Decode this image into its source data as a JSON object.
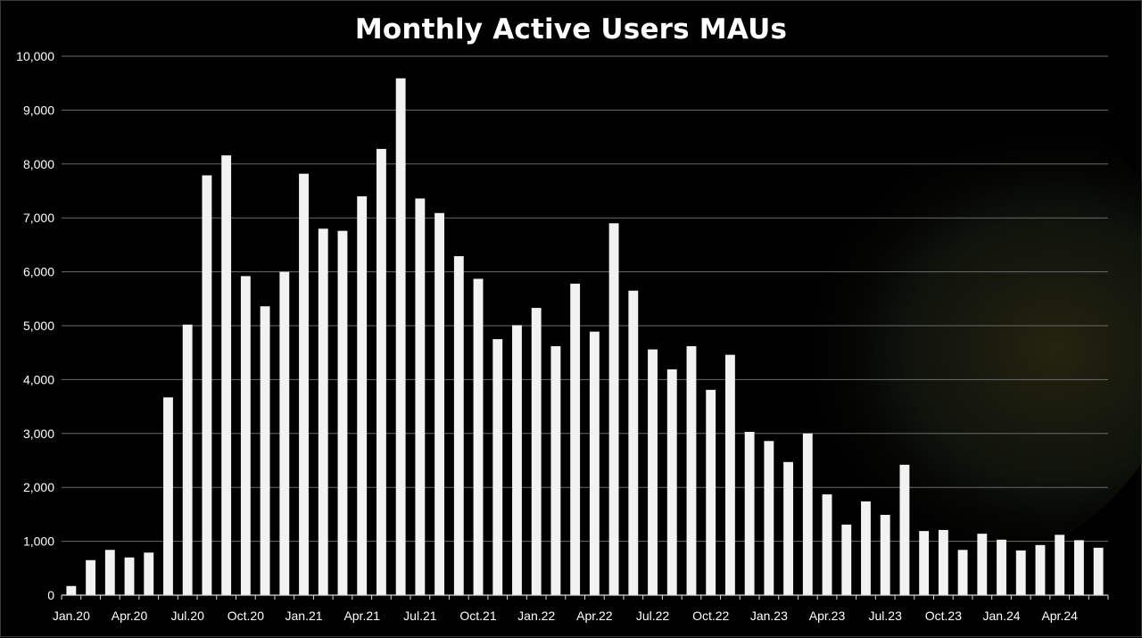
{
  "chart_data": {
    "type": "bar",
    "title": "Monthly Active Users MAUs",
    "xlabel": "",
    "ylabel": "",
    "ylim": [
      0,
      10000
    ],
    "yticks": [
      0,
      1000,
      2000,
      3000,
      4000,
      5000,
      6000,
      7000,
      8000,
      9000,
      10000
    ],
    "ytick_labels": [
      "0",
      "1,000",
      "2,000",
      "3,000",
      "4,000",
      "5,000",
      "6,000",
      "7,000",
      "8,000",
      "9,000",
      "10,000"
    ],
    "grid": true,
    "legend": "none",
    "categories": [
      "Jan.20",
      "Feb.20",
      "Mar.20",
      "Apr.20",
      "May.20",
      "Jun.20",
      "Jul.20",
      "Aug.20",
      "Sep.20",
      "Oct.20",
      "Nov.20",
      "Dec.20",
      "Jan.21",
      "Feb.21",
      "Mar.21",
      "Apr.21",
      "May.21",
      "Jun.21",
      "Jul.21",
      "Aug.21",
      "Sep.21",
      "Oct.21",
      "Nov.21",
      "Dec.21",
      "Jan.22",
      "Feb.22",
      "Mar.22",
      "Apr.22",
      "May.22",
      "Jun.22",
      "Jul.22",
      "Aug.22",
      "Sep.22",
      "Oct.22",
      "Nov.22",
      "Dec.22",
      "Jan.23",
      "Feb.23",
      "Mar.23",
      "Apr.23",
      "May.23",
      "Jun.23",
      "Jul.23",
      "Aug.23",
      "Sep.23",
      "Oct.23",
      "Nov.23",
      "Dec.23",
      "Jan.24",
      "Feb.24",
      "Mar.24",
      "Apr.24",
      "May.24",
      "Jun.24"
    ],
    "xtick_labels": [
      "Jan.20",
      "Apr.20",
      "Jul.20",
      "Oct.20",
      "Jan.21",
      "Apr.21",
      "Jul.21",
      "Oct.21",
      "Jan.22",
      "Apr.22",
      "Jul.22",
      "Oct.22",
      "Jan.23",
      "Apr.23",
      "Jul.23",
      "Oct.23",
      "Jan.24",
      "Apr.24"
    ],
    "values": [
      170,
      650,
      840,
      700,
      790,
      3670,
      5020,
      7790,
      8160,
      5920,
      5360,
      6000,
      7820,
      6800,
      6760,
      7400,
      8280,
      9590,
      7360,
      7090,
      6290,
      5870,
      4750,
      5010,
      5330,
      4620,
      5780,
      4890,
      6900,
      5650,
      4560,
      4190,
      4620,
      3810,
      4460,
      3030,
      2860,
      2470,
      3000,
      1870,
      1310,
      1740,
      1490,
      2420,
      1190,
      1210,
      840,
      1140,
      1030,
      830,
      930,
      1120,
      1020,
      880
    ],
    "colors": {
      "background": "#000000",
      "bar": "#f2f2f2",
      "grid": "#6b6b6b",
      "text": "#ffffff",
      "axis": "#d9d9d9"
    }
  }
}
